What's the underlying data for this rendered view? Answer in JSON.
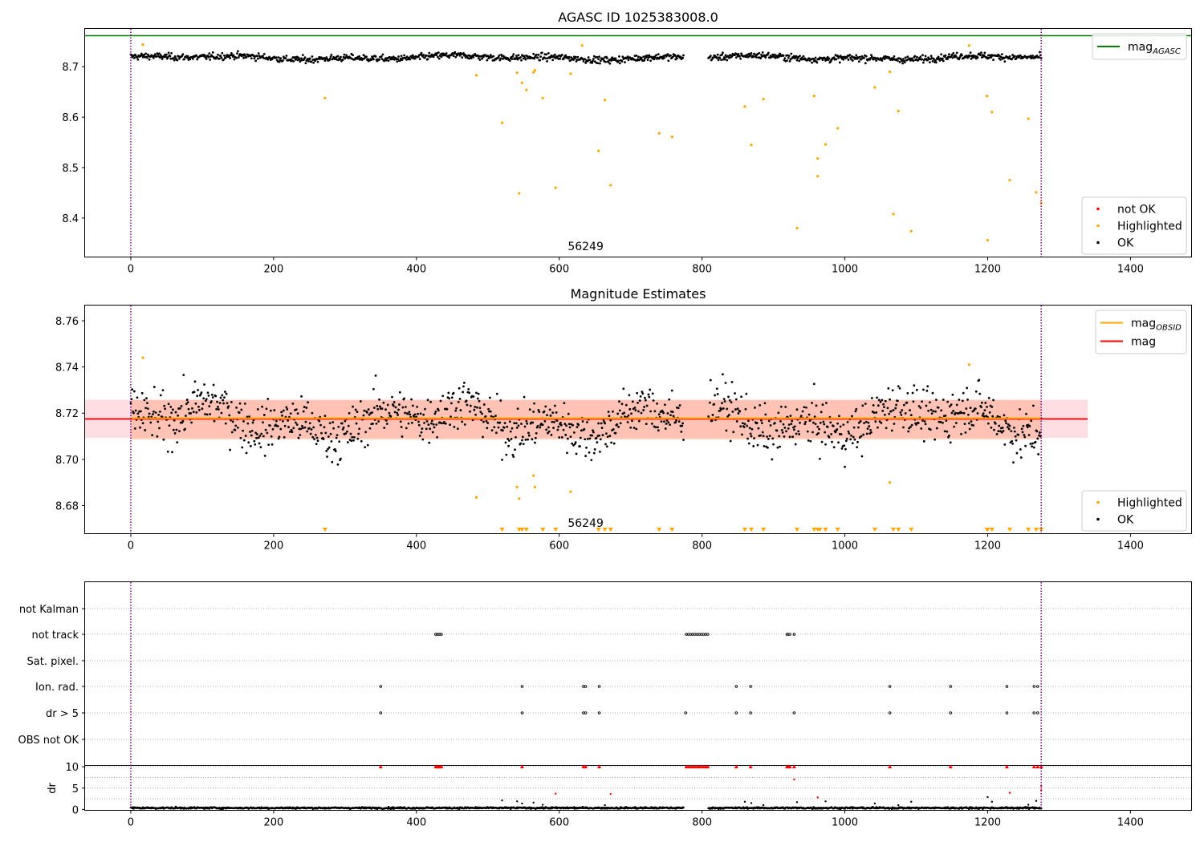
{
  "chart_data": [
    {
      "type": "scatter",
      "title": "AGASC ID 1025383008.0",
      "xlabel": "",
      "ylabel": "",
      "xlim": [
        -64,
        1485
      ],
      "ylim": [
        8.3235,
        8.775
      ],
      "xticks": [
        0,
        200,
        400,
        600,
        800,
        1000,
        1200,
        1400
      ],
      "yticks": [
        8.4,
        8.5,
        8.6,
        8.7
      ],
      "annotation": "56249",
      "annotation_x": 637,
      "vlines": [
        0,
        1275
      ],
      "hline": {
        "name": "mag_AGASC",
        "label_main": "mag",
        "label_sub": "AGASC",
        "value": 8.7615,
        "color": "#008000"
      },
      "legend_top": {
        "placement": "upper right",
        "entries": [
          {
            "label": "mag",
            "sub": "AGASC",
            "color": "#008000",
            "kind": "line"
          }
        ]
      },
      "legend_bottom": {
        "placement": "lower right",
        "entries": [
          {
            "label": "not OK",
            "color": "#ff0000",
            "kind": "dot"
          },
          {
            "label": "Highlighted",
            "color": "#ffa500",
            "kind": "dot"
          },
          {
            "label": "OK",
            "color": "#000000",
            "kind": "dot"
          }
        ]
      },
      "series": [
        {
          "name": "OK",
          "color": "#000000",
          "x_range": [
            0,
            1275
          ],
          "gaps": [
            [
              775,
              808
            ]
          ],
          "baseline": 8.718,
          "spread": 0.006
        },
        {
          "name": "Highlighted",
          "color": "#ffa500",
          "points": [
            [
              17,
              8.744
            ],
            [
              272,
              8.638
            ],
            [
              484,
              8.683
            ],
            [
              520,
              8.589
            ],
            [
              541,
              8.688
            ],
            [
              544,
              8.449
            ],
            [
              548,
              8.668
            ],
            [
              554,
              8.654
            ],
            [
              564,
              8.689
            ],
            [
              566,
              8.693
            ],
            [
              577,
              8.638
            ],
            [
              595,
              8.46
            ],
            [
              616,
              8.686
            ],
            [
              632,
              8.742
            ],
            [
              655,
              8.533
            ],
            [
              664,
              8.634
            ],
            [
              672,
              8.465
            ],
            [
              740,
              8.568
            ],
            [
              758,
              8.561
            ],
            [
              860,
              8.621
            ],
            [
              869,
              8.545
            ],
            [
              886,
              8.636
            ],
            [
              933,
              8.38
            ],
            [
              957,
              8.642
            ],
            [
              962,
              8.518
            ],
            [
              962,
              8.483
            ],
            [
              973,
              8.546
            ],
            [
              990,
              8.578
            ],
            [
              1042,
              8.659
            ],
            [
              1063,
              8.69
            ],
            [
              1068,
              8.408
            ],
            [
              1075,
              8.612
            ],
            [
              1093,
              8.374
            ],
            [
              1174,
              8.742
            ],
            [
              1199,
              8.642
            ],
            [
              1200,
              8.356
            ],
            [
              1206,
              8.61
            ],
            [
              1231,
              8.475
            ],
            [
              1257,
              8.597
            ],
            [
              1268,
              8.451
            ],
            [
              1275,
              8.43
            ]
          ]
        }
      ]
    },
    {
      "type": "scatter",
      "title": "Magnitude Estimates",
      "xlabel": "",
      "ylabel": "",
      "xlim": [
        -64,
        1485
      ],
      "ylim": [
        8.668,
        8.7666
      ],
      "xticks": [
        0,
        200,
        400,
        600,
        800,
        1000,
        1200,
        1400
      ],
      "yticks": [
        8.68,
        8.7,
        8.72,
        8.74,
        8.76
      ],
      "annotation": "56249",
      "annotation_x": 637,
      "vlines": [
        0,
        1275
      ],
      "mag": {
        "label": "mag",
        "value": 8.7175,
        "color": "#ff0000",
        "band": [
          8.7093,
          8.7258
        ],
        "band_x": [
          -64,
          1340
        ]
      },
      "mag_obsid": {
        "label_main": "mag",
        "label_sub": "OBSID",
        "value": 8.7178,
        "color": "#ffa500",
        "band": [
          8.7086,
          8.7257
        ],
        "x_range": [
          0,
          1275
        ]
      },
      "legend_top": {
        "placement": "upper right",
        "entries": [
          {
            "label": "mag",
            "sub": "OBSID",
            "color": "#ffa500",
            "kind": "line"
          },
          {
            "label": "mag",
            "sub": "",
            "color": "#ff0000",
            "kind": "line"
          }
        ]
      },
      "legend_bottom": {
        "placement": "lower right",
        "entries": [
          {
            "label": "Highlighted",
            "color": "#ffa500",
            "kind": "dot"
          },
          {
            "label": "OK",
            "color": "#000000",
            "kind": "dot"
          }
        ]
      },
      "series": [
        {
          "name": "OK",
          "color": "#000000",
          "x_range": [
            0,
            1275
          ],
          "gaps": [
            [
              775,
              808
            ]
          ],
          "baseline": 8.717,
          "spread": 0.0075
        },
        {
          "name": "Highlighted",
          "color": "#ffa500",
          "points": [
            [
              17,
              8.744
            ],
            [
              484,
              8.6835
            ],
            [
              541,
              8.688
            ],
            [
              544,
              8.683
            ],
            [
              564,
              8.693
            ],
            [
              566,
              8.688
            ],
            [
              616,
              8.686
            ],
            [
              1063,
              8.69
            ],
            [
              1174,
              8.741
            ]
          ]
        },
        {
          "name": "Highlighted (below range)",
          "color": "#ffa500",
          "marker": "down-triangle",
          "x": [
            272,
            520,
            544,
            548,
            554,
            577,
            595,
            655,
            664,
            672,
            740,
            758,
            860,
            869,
            886,
            933,
            957,
            962,
            965,
            973,
            990,
            1042,
            1068,
            1075,
            1093,
            1199,
            1200,
            1206,
            1231,
            1257,
            1268,
            1275
          ]
        }
      ]
    },
    {
      "type": "scatter",
      "title": "",
      "xlabel": "",
      "ylabel": "",
      "xlim": [
        -64,
        1485
      ],
      "vlines": [
        0,
        1275
      ],
      "categories": [
        "not Kalman",
        "not track",
        "Sat. pixel.",
        "Ion. rad.",
        "dr > 5",
        "OBS not OK"
      ],
      "flags": [
        {
          "category": "not Kalman",
          "x": []
        },
        {
          "category": "not track",
          "x": [
            427,
            429,
            431,
            433,
            435,
            778,
            781,
            784,
            787,
            790,
            793,
            796,
            799,
            802,
            805,
            808,
            919,
            921,
            923,
            929
          ]
        },
        {
          "category": "Sat. pixel.",
          "x": []
        },
        {
          "category": "Ion. rad.",
          "x": [
            350,
            548,
            634,
            637,
            656,
            848,
            868,
            1063,
            1148,
            1227,
            1265,
            1270
          ]
        },
        {
          "category": "dr > 5",
          "x": [
            350,
            548,
            634,
            637,
            656,
            777,
            848,
            868,
            929,
            1063,
            1148,
            1227,
            1265,
            1270
          ]
        },
        {
          "category": "OBS not OK",
          "x": []
        }
      ]
    },
    {
      "type": "scatter",
      "title": "",
      "xlabel": "",
      "ylabel": "dr",
      "xlim": [
        -64,
        1485
      ],
      "ylim": [
        -0.3,
        10.4
      ],
      "xticks": [
        0,
        200,
        400,
        600,
        800,
        1000,
        1200,
        1400
      ],
      "yticks": [
        0,
        5,
        10
      ],
      "vlines": [
        0,
        1275
      ],
      "series": [
        {
          "name": "dr",
          "color": "#000000",
          "x_range": [
            0,
            1275
          ],
          "gaps": [
            [
              775,
              808
            ]
          ],
          "baseline": 0.35,
          "spread": 0.12
        },
        {
          "name": "dr (outliers)",
          "color": "#000000",
          "points": [
            [
              520,
              2.1
            ],
            [
              541,
              1.9
            ],
            [
              548,
              1.4
            ],
            [
              564,
              1.6
            ],
            [
              577,
              1.1
            ],
            [
              664,
              1.0
            ],
            [
              860,
              1.8
            ],
            [
              869,
              1.5
            ],
            [
              886,
              1.0
            ],
            [
              933,
              1.7
            ],
            [
              973,
              1.9
            ],
            [
              1042,
              1.4
            ],
            [
              1075,
              1.0
            ],
            [
              1093,
              1.8
            ],
            [
              1200,
              2.9
            ],
            [
              1206,
              1.8
            ],
            [
              1257,
              1.1
            ],
            [
              1268,
              2.0
            ]
          ]
        },
        {
          "name": "dr (flagged)",
          "color": "#ff0000",
          "points": [
            [
              595,
              3.7
            ],
            [
              672,
              3.6
            ],
            [
              929,
              7.0
            ],
            [
              962,
              2.8
            ],
            [
              1231,
              3.9
            ],
            [
              1275,
              4.5
            ],
            [
              1275,
              5.5
            ]
          ]
        },
        {
          "name": "dr (clipped at 10)",
          "color": "#ff0000",
          "marker": "up-triangle",
          "x": [
            350,
            427,
            429,
            431,
            433,
            435,
            548,
            634,
            637,
            656,
            778,
            781,
            784,
            787,
            790,
            793,
            796,
            799,
            802,
            805,
            808,
            848,
            868,
            919,
            921,
            923,
            929,
            1063,
            1148,
            1227,
            1265,
            1270,
            1275
          ]
        }
      ]
    }
  ]
}
